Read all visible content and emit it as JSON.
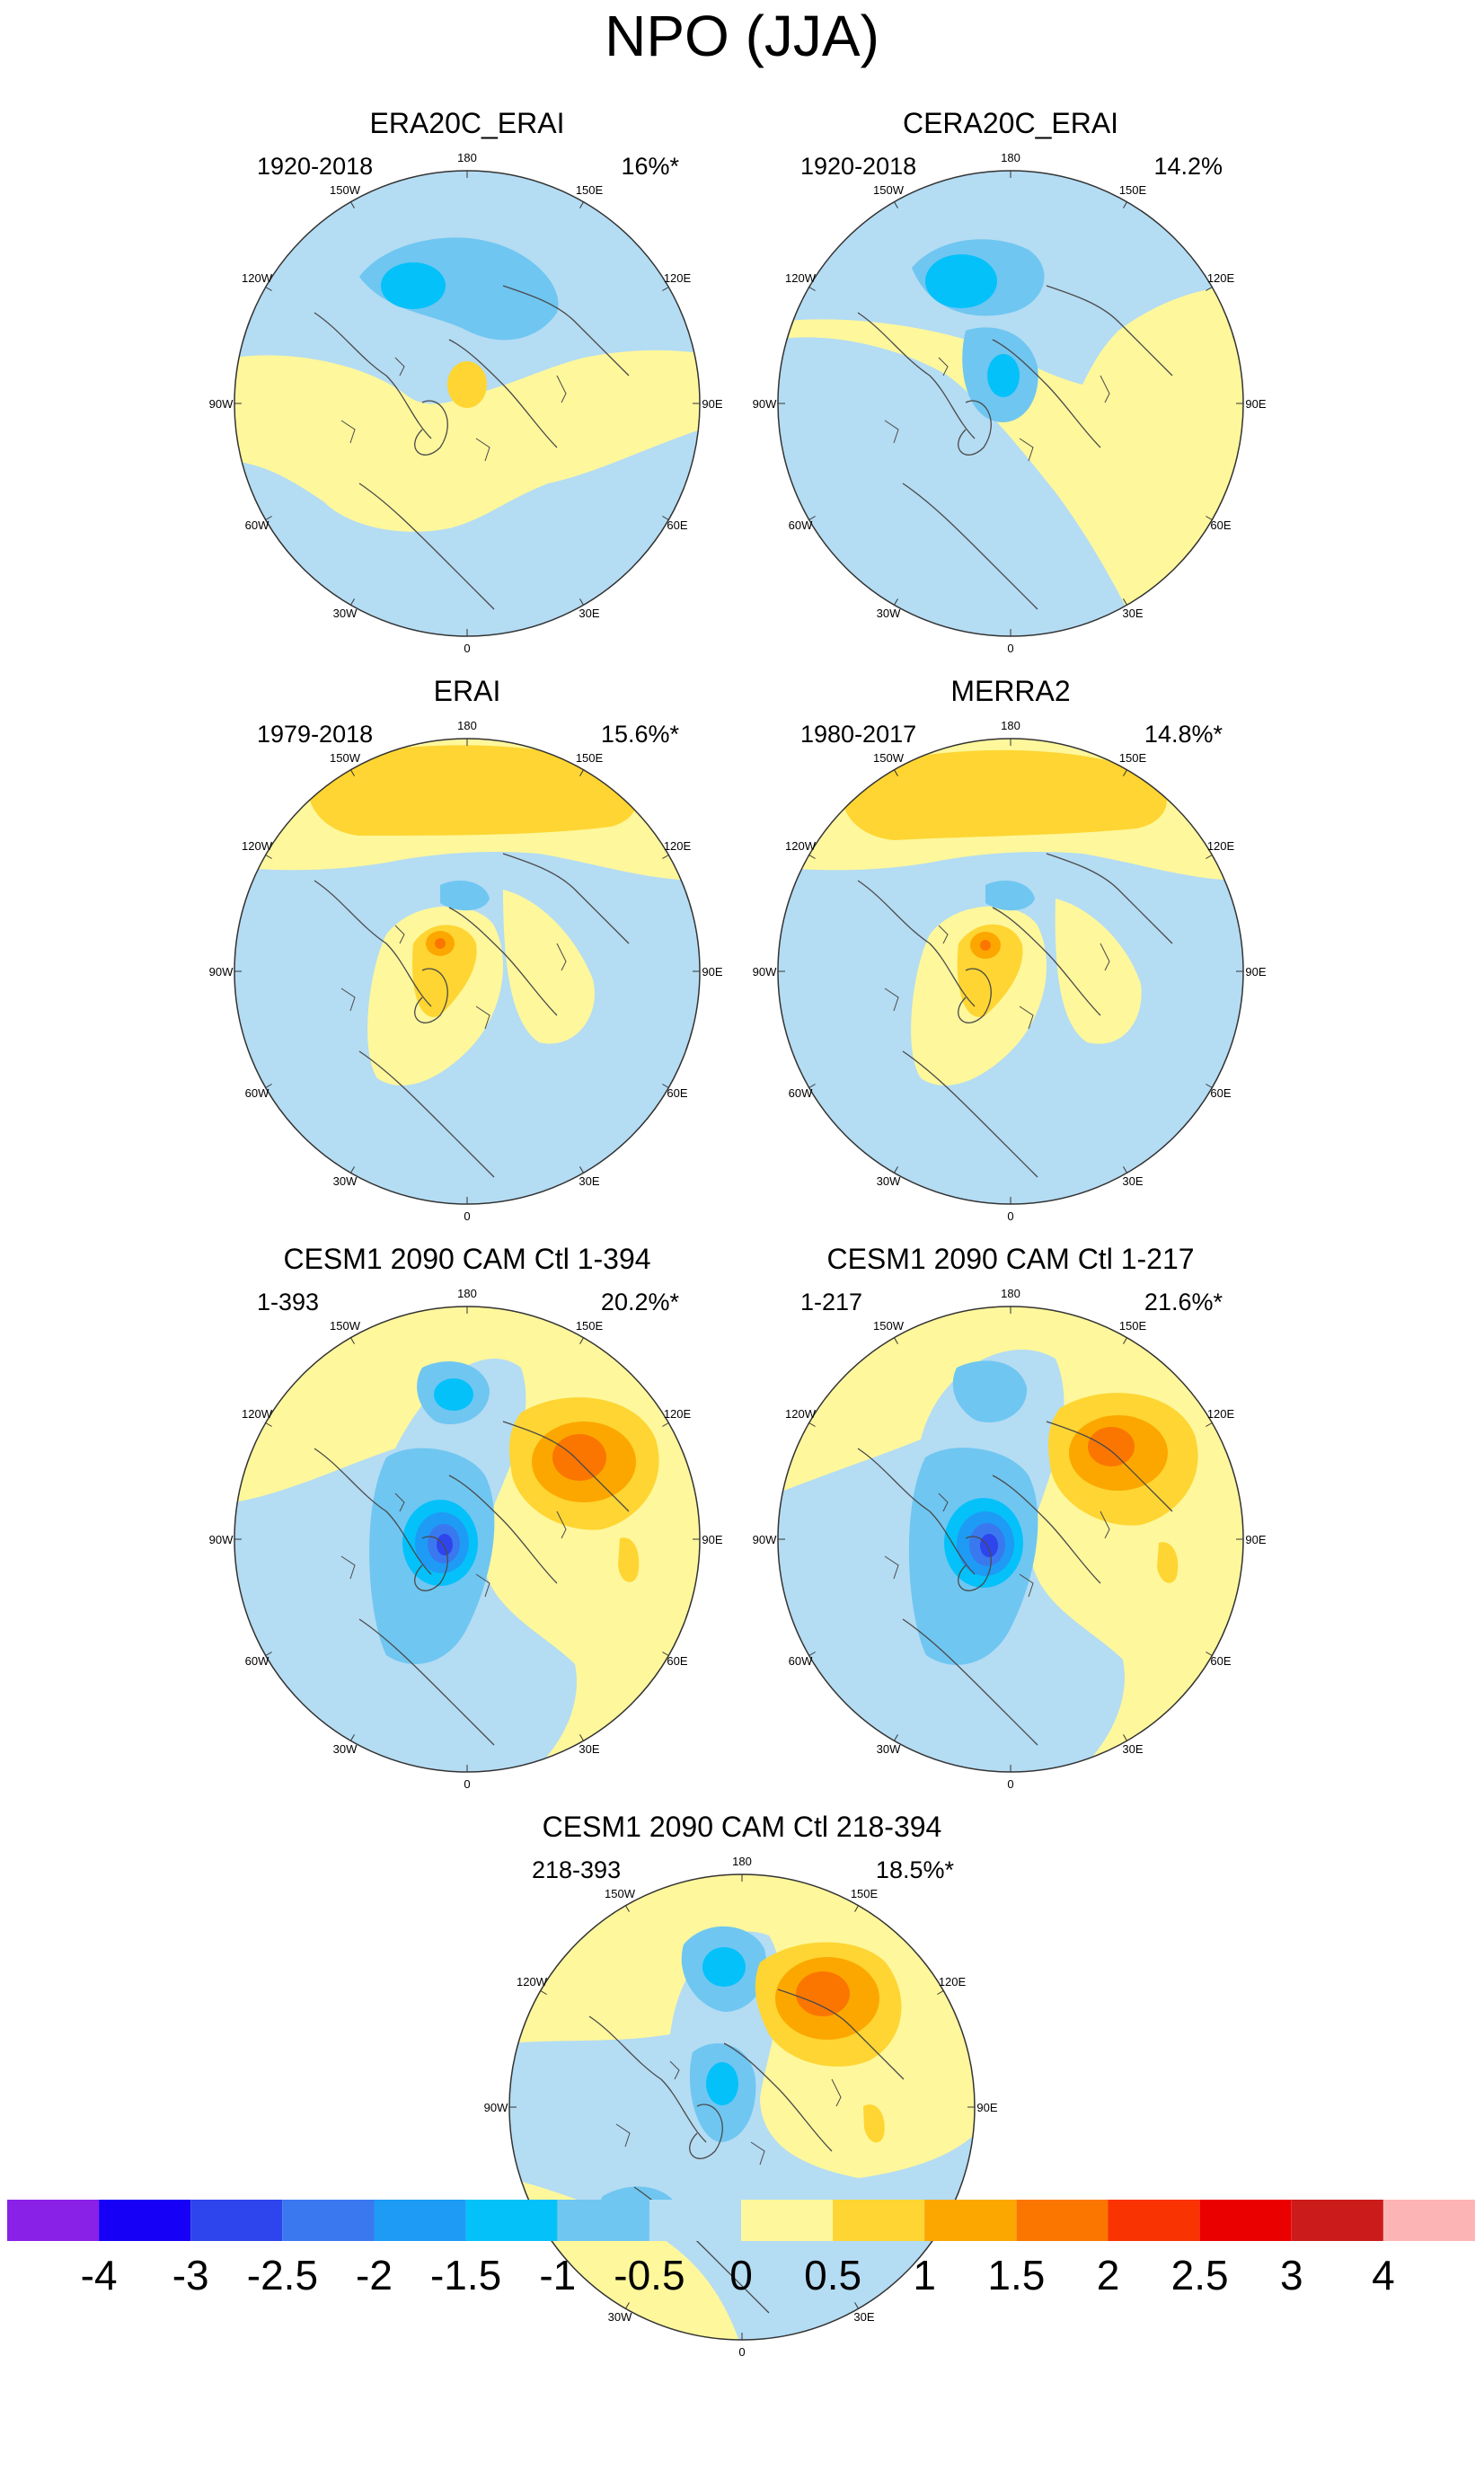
{
  "figure": {
    "title": "NPO (JJA)"
  },
  "colors": {
    "boundary": "#333333",
    "coast": "#4a4a4a"
  },
  "longitude_labels": [
    "180",
    "150E",
    "120E",
    "90E",
    "60E",
    "30E",
    "0",
    "30W",
    "60W",
    "90W",
    "120W",
    "150W"
  ],
  "panels": [
    {
      "title": "ERA20C_ERAI",
      "period": "1920-2018",
      "percent": "16%*"
    },
    {
      "title": "CERA20C_ERAI",
      "period": "1920-2018",
      "percent": "14.2%"
    },
    {
      "title": "ERAI",
      "period": "1979-2018",
      "percent": "15.6%*"
    },
    {
      "title": "MERRA2",
      "period": "1980-2017",
      "percent": "14.8%*"
    },
    {
      "title": "CESM1 2090 CAM Ctl 1-394",
      "period": "1-393",
      "percent": "20.2%*"
    },
    {
      "title": "CESM1 2090 CAM Ctl 1-217",
      "period": "1-217",
      "percent": "21.6%*"
    },
    {
      "title": "CESM1 2090 CAM Ctl 218-394",
      "period": "218-393",
      "percent": "18.5%*"
    }
  ],
  "colorbar": {
    "labels": [
      "-4",
      "-3",
      "-2.5",
      "-2",
      "-1.5",
      "-1",
      "-0.5",
      "0",
      "0.5",
      "1",
      "1.5",
      "2",
      "2.5",
      "3",
      "4"
    ],
    "colors": [
      "#8a21e6",
      "#1600f5",
      "#2e44ed",
      "#3a78ef",
      "#1e9bf5",
      "#05c1f9",
      "#6fc6f1",
      "#b4dcf3",
      "#fef79c",
      "#fed532",
      "#fca700",
      "#fb7600",
      "#fa3302",
      "#eb0000",
      "#cc1b1b",
      "#fdb4b4"
    ]
  }
}
